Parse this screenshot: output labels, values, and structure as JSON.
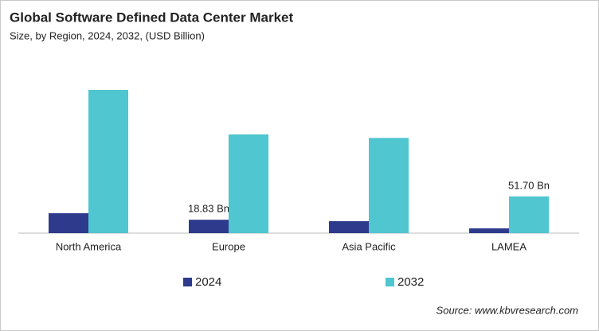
{
  "chart_data": {
    "type": "bar",
    "title": "Global Software Defined Data Center Market",
    "subtitle": "Size, by Region, 2024, 2032, (USD Billion)",
    "categories": [
      "North America",
      "Europe",
      "Asia Pacific",
      "LAMEA"
    ],
    "series": [
      {
        "name": "2024",
        "color": "#2e3a8c",
        "values": [
          28,
          18.83,
          16.8,
          6.7
        ],
        "value_labels": [
          null,
          "18.83 Bn",
          null,
          null
        ]
      },
      {
        "name": "2032",
        "color": "#4fc6d0",
        "values": [
          201.6,
          139,
          134,
          51.7
        ],
        "value_labels": [
          null,
          null,
          null,
          "51.70 Bn"
        ]
      }
    ],
    "source": "Source: www.kbvresearch.com"
  }
}
